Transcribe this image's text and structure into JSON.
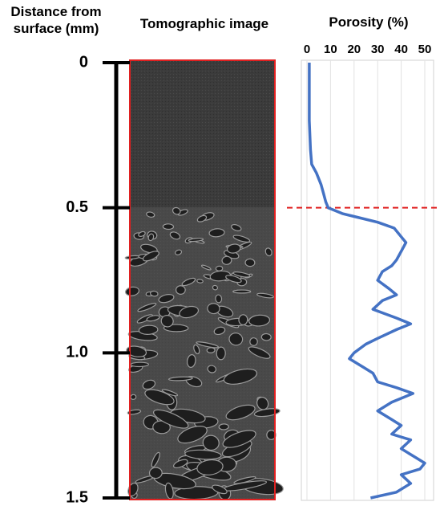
{
  "chart_data": {
    "type": "line",
    "y_label": "Distance from surface (mm)",
    "image_label": "Tomographic image",
    "x_label": "Porosity (%)",
    "xlim": [
      0,
      50
    ],
    "xticks": [
      0,
      10,
      20,
      30,
      40,
      50
    ],
    "ylim": [
      0,
      1.5
    ],
    "yticks": [
      0,
      0.5,
      {
        "value": 1,
        "label": "1.0"
      },
      {
        "value": 1.5,
        "label": "1.5"
      }
    ],
    "y_inverted": true,
    "grid": true,
    "series": [
      {
        "color": "#4472c4",
        "x": [
          0,
          0.05,
          0.1,
          0.2,
          0.3,
          0.35,
          0.38,
          0.42,
          0.45,
          0.48,
          0.5,
          0.51,
          0.52,
          0.53,
          0.55,
          0.57,
          0.6,
          0.62,
          0.65,
          0.68,
          0.7,
          0.72,
          0.75,
          0.78,
          0.8,
          0.82,
          0.85,
          0.88,
          0.9,
          0.92,
          0.95,
          0.97,
          1.0,
          1.02,
          1.05,
          1.07,
          1.1,
          1.12,
          1.14,
          1.17,
          1.2,
          1.23,
          1.25,
          1.28,
          1.3,
          1.33,
          1.36,
          1.38,
          1.4,
          1.42,
          1.45,
          1.48,
          1.5
        ],
        "values": [
          1,
          1,
          1,
          1,
          1.5,
          2,
          4,
          6,
          7,
          8,
          9,
          12,
          15,
          20,
          30,
          37,
          40,
          42,
          40,
          38,
          36,
          32,
          30,
          35,
          38,
          32,
          28,
          38,
          44,
          38,
          30,
          25,
          20,
          18,
          24,
          28,
          30,
          38,
          45,
          36,
          30,
          36,
          40,
          36,
          44,
          40,
          46,
          50,
          48,
          40,
          44,
          38,
          27
        ]
      }
    ]
  }
}
